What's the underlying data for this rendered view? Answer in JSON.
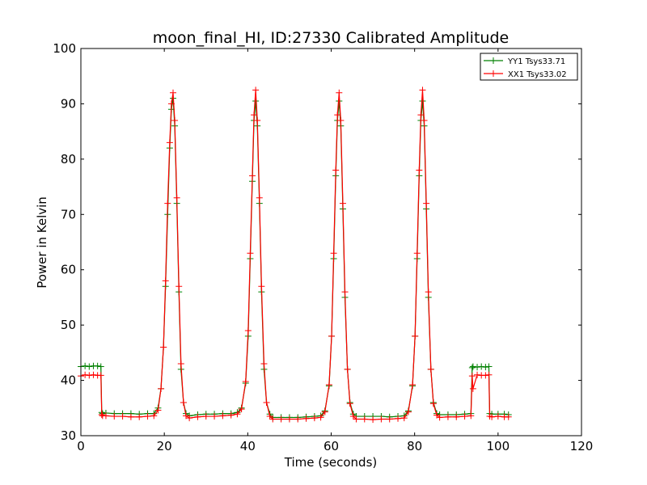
{
  "chart_data": {
    "type": "line",
    "title": "moon_final_HI, ID:27330 Calibrated Amplitude",
    "xlabel": "Time (seconds)",
    "ylabel": "Power in Kelvin",
    "xlim": [
      0,
      120
    ],
    "ylim": [
      30,
      100
    ],
    "xticks": [
      0,
      20,
      40,
      60,
      80,
      100,
      120
    ],
    "yticks": [
      30,
      40,
      50,
      60,
      70,
      80,
      90,
      100
    ],
    "grid": false,
    "legend_position": "top-right",
    "series": [
      {
        "name": "YY1 Tsys33.71",
        "color": "#008000",
        "marker": "plus",
        "x": [
          0,
          1,
          2,
          3,
          4,
          4.8,
          5.0,
          5.2,
          6,
          8,
          10,
          12,
          14,
          16,
          17.5,
          18.5,
          19.2,
          19.8,
          20.3,
          20.8,
          21.3,
          21.7,
          22.1,
          22.5,
          23.0,
          23.5,
          24.0,
          24.6,
          25.2,
          26,
          28,
          30,
          32,
          34,
          36,
          37.5,
          38.5,
          39.5,
          40.1,
          40.6,
          41.1,
          41.5,
          41.9,
          42.3,
          42.8,
          43.3,
          43.9,
          44.5,
          45.3,
          46,
          48,
          50,
          52,
          54,
          56,
          57.5,
          58.5,
          59.5,
          60.1,
          60.6,
          61.1,
          61.5,
          61.9,
          62.3,
          62.8,
          63.3,
          63.9,
          64.5,
          65.3,
          66,
          68,
          70,
          72,
          74,
          76,
          77.5,
          78.5,
          79.5,
          80.1,
          80.6,
          81.1,
          81.5,
          81.9,
          82.3,
          82.8,
          83.3,
          83.9,
          84.5,
          85.3,
          86,
          88,
          90,
          92,
          93.5,
          93.8,
          94.0,
          95,
          96,
          97,
          97.8,
          98.0,
          98.5,
          100,
          101.5,
          102.5
        ],
        "y": [
          42.5,
          42.6,
          42.5,
          42.6,
          42.6,
          42.5,
          34.2,
          34.0,
          34.1,
          34.0,
          34.0,
          34.0,
          33.9,
          34.0,
          34.0,
          35.0,
          38.5,
          46,
          57,
          70,
          82,
          89,
          91,
          86,
          72,
          56,
          42,
          36,
          34.0,
          33.6,
          33.8,
          33.9,
          33.9,
          34.0,
          34.0,
          34.2,
          35.0,
          39.5,
          48,
          62,
          76,
          87,
          90.5,
          86,
          72,
          56,
          42,
          36,
          33.9,
          33.3,
          33.3,
          33.3,
          33.3,
          33.4,
          33.5,
          33.6,
          34.5,
          39.0,
          48,
          62,
          77,
          87,
          90.5,
          86,
          71,
          55,
          42,
          36,
          33.9,
          33.5,
          33.5,
          33.5,
          33.5,
          33.4,
          33.5,
          33.6,
          34.5,
          39.0,
          48,
          62,
          77,
          87,
          90.5,
          86,
          71,
          55,
          42,
          36,
          34.0,
          33.8,
          33.8,
          33.8,
          33.9,
          34.0,
          42.3,
          42.5,
          42.4,
          42.5,
          42.4,
          42.5,
          34.0,
          33.9,
          33.9,
          33.9,
          33.8
        ]
      },
      {
        "name": "XX1 Tsys33.02",
        "color": "#ff0000",
        "marker": "plus",
        "x": [
          0,
          1,
          2,
          3,
          4,
          4.8,
          5.0,
          5.2,
          6,
          8,
          10,
          12,
          14,
          16,
          17.5,
          18.5,
          19.2,
          19.8,
          20.3,
          20.8,
          21.3,
          21.7,
          22.1,
          22.5,
          23.0,
          23.5,
          24.0,
          24.6,
          25.2,
          26,
          28,
          30,
          32,
          34,
          36,
          37.5,
          38.5,
          39.5,
          40.1,
          40.6,
          41.1,
          41.5,
          41.9,
          42.3,
          42.8,
          43.3,
          43.9,
          44.5,
          45.3,
          46,
          48,
          50,
          52,
          54,
          56,
          57.5,
          58.5,
          59.5,
          60.1,
          60.6,
          61.1,
          61.5,
          61.9,
          62.3,
          62.8,
          63.3,
          63.9,
          64.5,
          65.3,
          66,
          68,
          70,
          72,
          74,
          76,
          77.5,
          78.5,
          79.5,
          80.1,
          80.6,
          81.1,
          81.5,
          81.9,
          82.3,
          82.8,
          83.3,
          83.9,
          84.5,
          85.3,
          86,
          88,
          90,
          92,
          93.5,
          93.8,
          94.0,
          95,
          96,
          97,
          97.8,
          98.0,
          98.5,
          100,
          101.5,
          102.5
        ],
        "y": [
          40.8,
          41.0,
          40.9,
          41.0,
          40.9,
          40.9,
          33.8,
          33.6,
          33.6,
          33.5,
          33.5,
          33.4,
          33.4,
          33.5,
          33.6,
          34.6,
          38.5,
          46,
          58,
          72,
          83,
          90,
          92,
          87,
          73,
          57,
          43,
          36,
          33.6,
          33.2,
          33.4,
          33.5,
          33.5,
          33.6,
          33.7,
          33.9,
          34.8,
          39.8,
          49,
          63,
          77,
          88,
          92.5,
          87,
          73,
          57,
          43,
          36,
          33.5,
          33.0,
          33.0,
          33.0,
          33.0,
          33.1,
          33.2,
          33.3,
          34.3,
          39.2,
          48,
          63,
          78,
          88,
          92,
          87,
          72,
          56,
          42,
          35.8,
          33.5,
          33.0,
          33.0,
          32.9,
          33.0,
          33.0,
          33.1,
          33.2,
          34.3,
          39.2,
          48,
          63,
          78,
          88,
          92.5,
          87,
          72,
          56,
          42,
          35.8,
          33.7,
          33.3,
          33.4,
          33.4,
          33.5,
          33.6,
          40.8,
          38.5,
          41.0,
          40.9,
          40.9,
          41.0,
          33.5,
          33.4,
          33.5,
          33.4,
          33.4
        ]
      }
    ]
  }
}
